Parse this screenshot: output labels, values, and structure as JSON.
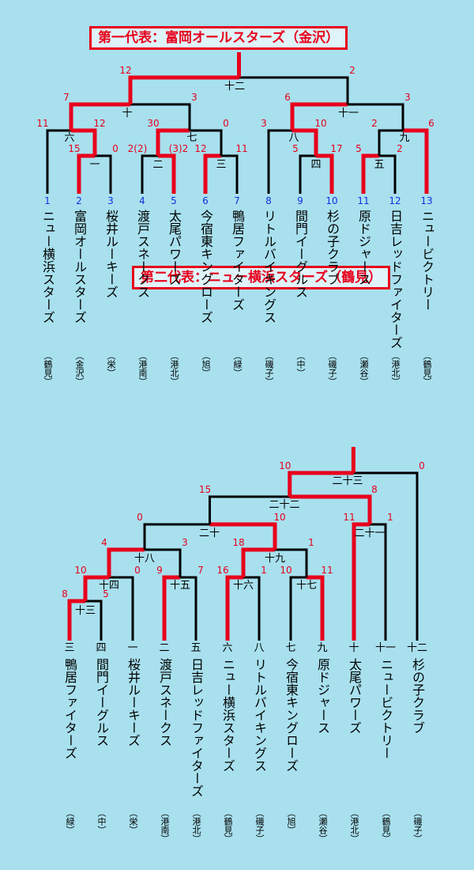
{
  "bracket1": {
    "title": "第一代表：富岡オールスターズ（金沢）",
    "teams": [
      {
        "seed": "1",
        "name": "ニュー横浜スターズ",
        "city": "（鶴見）"
      },
      {
        "seed": "2",
        "name": "富岡オールスターズ",
        "city": "（金沢）"
      },
      {
        "seed": "3",
        "name": "桜井ルーキーズ",
        "city": "（栄）"
      },
      {
        "seed": "4",
        "name": "渡戸スネークス",
        "city": "（港南）"
      },
      {
        "seed": "5",
        "name": "太尾パワーズ",
        "city": "（港北）"
      },
      {
        "seed": "6",
        "name": "今宿東キングローズ",
        "city": "（旭）"
      },
      {
        "seed": "7",
        "name": "鴨居ファイターズ",
        "city": "（緑）"
      },
      {
        "seed": "8",
        "name": "リトルバイキングス",
        "city": "（磯子）"
      },
      {
        "seed": "9",
        "name": "間門イーグルス",
        "city": "（中）"
      },
      {
        "seed": "10",
        "name": "杉の子クラブ",
        "city": "（磯子）"
      },
      {
        "seed": "11",
        "name": "原ドジャース",
        "city": "（瀬谷）"
      },
      {
        "seed": "12",
        "name": "日吉レッドファイターズ",
        "city": "（港北）"
      },
      {
        "seed": "13",
        "name": "ニュービクトリー",
        "city": "（鶴見）"
      }
    ],
    "games": [
      {
        "label": "一",
        "left": "15",
        "right": "0"
      },
      {
        "label": "二",
        "left": "2(2)",
        "right": "(3)2"
      },
      {
        "label": "三",
        "left": "12",
        "right": "11"
      },
      {
        "label": "四",
        "left": "5",
        "right": "17"
      },
      {
        "label": "五",
        "left": "5",
        "right": "2"
      },
      {
        "label": "六",
        "left": "11",
        "right": "12"
      },
      {
        "label": "七",
        "left": "30",
        "right": "0"
      },
      {
        "label": "八",
        "left": "3",
        "right": "10"
      },
      {
        "label": "九",
        "left": "2",
        "right": "6"
      },
      {
        "label": "十",
        "left": "7",
        "right": "3"
      },
      {
        "label": "十一",
        "left": "6",
        "right": "3"
      },
      {
        "label": "十二",
        "left": "12",
        "right": "2"
      }
    ]
  },
  "bracket2": {
    "title": "第二代表：ニュー横浜スターズ（鶴見）",
    "teams": [
      {
        "seed": "三",
        "name": "鴨居ファイターズ",
        "city": "（緑）"
      },
      {
        "seed": "四",
        "name": "間門イーグルス",
        "city": "（中）"
      },
      {
        "seed": "一",
        "name": "桜井ルーキーズ",
        "city": "（栄）"
      },
      {
        "seed": "二",
        "name": "渡戸スネークス",
        "city": "（港南）"
      },
      {
        "seed": "五",
        "name": "日吉レッドファイターズ",
        "city": "（港北）"
      },
      {
        "seed": "六",
        "name": "ニュー横浜スターズ",
        "city": "（鶴見）"
      },
      {
        "seed": "八",
        "name": "リトルバイキングス",
        "city": "（磯子）"
      },
      {
        "seed": "七",
        "name": "今宿東キングローズ",
        "city": "（旭）"
      },
      {
        "seed": "九",
        "name": "原ドジャース",
        "city": "（瀬谷）"
      },
      {
        "seed": "十",
        "name": "太尾パワーズ",
        "city": "（港北）"
      },
      {
        "seed": "十一",
        "name": "ニュービクトリー",
        "city": "（鶴見）"
      },
      {
        "seed": "十二",
        "name": "杉の子クラブ",
        "city": "（磯子）"
      }
    ],
    "games": [
      {
        "label": "十三",
        "left": "8",
        "right": "5"
      },
      {
        "label": "十四",
        "left": "10",
        "right": "0"
      },
      {
        "label": "十五",
        "left": "9",
        "right": "7"
      },
      {
        "label": "十六",
        "left": "16",
        "right": "1"
      },
      {
        "label": "十七",
        "left": "10",
        "right": "11"
      },
      {
        "label": "十八",
        "left": "4",
        "right": "3"
      },
      {
        "label": "十九",
        "left": "18",
        "right": "1"
      },
      {
        "label": "二十",
        "left": "0",
        "right": "10"
      },
      {
        "label": "二十一",
        "left": "11",
        "right": "1"
      },
      {
        "label": "二十二",
        "left": "15",
        "right": "8"
      },
      {
        "label": "二十三",
        "left": "10",
        "right": "0"
      }
    ]
  },
  "colors": {
    "background": "#a8e0ee",
    "winner_line": "#e8001c",
    "loser_line": "#000000",
    "seed_number": "#1030e0"
  }
}
